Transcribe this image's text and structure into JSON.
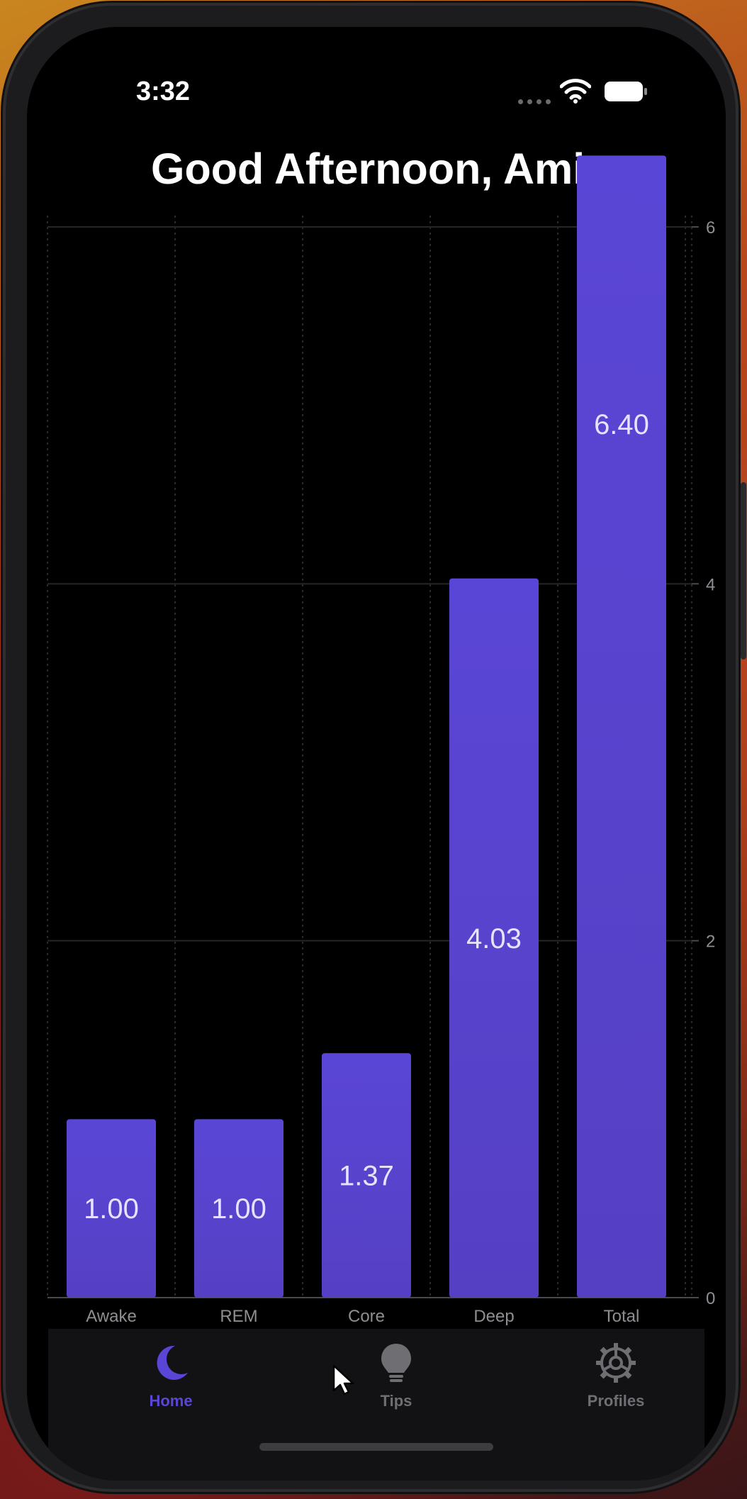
{
  "status_bar": {
    "time": "3:32"
  },
  "greeting": "Good Afternoon, Amir",
  "chart_data": {
    "type": "bar",
    "categories": [
      "Awake",
      "REM",
      "Core",
      "Deep",
      "Total"
    ],
    "values": [
      1.0,
      1.0,
      1.37,
      4.03,
      6.4
    ],
    "value_labels": [
      "1.00",
      "1.00",
      "1.37",
      "4.03",
      "6.40"
    ],
    "y_ticks": [
      "0",
      "2",
      "4",
      "6"
    ],
    "y_tick_values": [
      0,
      2,
      4,
      6
    ],
    "ylim": [
      0,
      6.4
    ],
    "yaxis_position": "right",
    "grid": true,
    "bar_color": "#5a46d6"
  },
  "tab_bar": {
    "tabs": [
      {
        "label": "Home",
        "icon": "moon-icon",
        "active": true
      },
      {
        "label": "Tips",
        "icon": "lightbulb-icon",
        "active": false
      },
      {
        "label": "Profiles",
        "icon": "gear-icon",
        "active": false
      }
    ],
    "active_color": "#5a46d6",
    "inactive_color": "#6e6e73"
  }
}
